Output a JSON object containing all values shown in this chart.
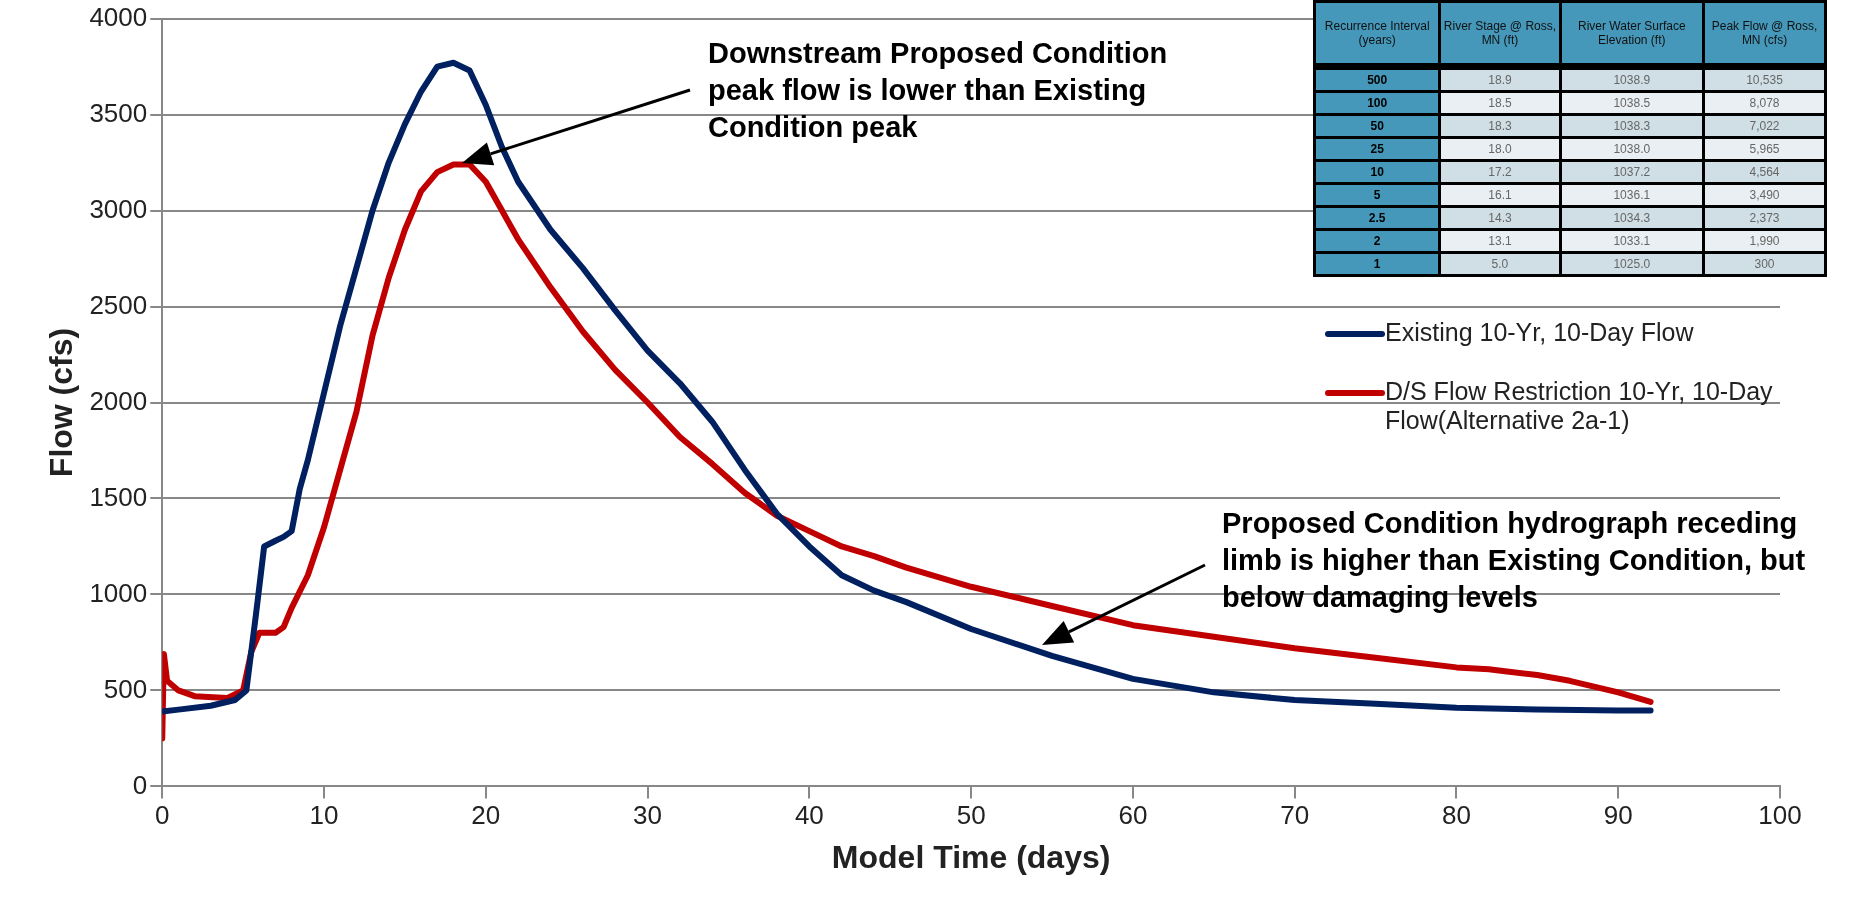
{
  "chart_data": [
    {
      "type": "line",
      "xlabel": "Model Time (days)",
      "ylabel": "Flow (cfs)",
      "xlim": [
        0,
        100
      ],
      "xticks": [
        0,
        10,
        20,
        30,
        40,
        50,
        60,
        70,
        80,
        90,
        100
      ],
      "ylim": [
        0,
        4000
      ],
      "yticks": [
        0,
        500,
        1000,
        1500,
        2000,
        2500,
        3000,
        3500,
        4000
      ],
      "grid": "y",
      "legend": "right",
      "marker": "none",
      "line_style": "solid",
      "annotations": [
        "Downstream Proposed Condition peak flow is lower than Existing Condition peak",
        "Proposed Condition hydrograph receding limb is higher than Existing Condition, but below damaging levels"
      ],
      "series": [
        {
          "name": "Existing 10-Yr, 10-Day Flow",
          "color": "#002060",
          "x": [
            0,
            1,
            3,
            4.5,
            5.2,
            5.8,
            6.3,
            7,
            7.5,
            8,
            8.5,
            9,
            10,
            11,
            12,
            13,
            14,
            15,
            16,
            17,
            18,
            19,
            20,
            21,
            22,
            24,
            26,
            28,
            30,
            32,
            34,
            36,
            38,
            40,
            42,
            44,
            46,
            50,
            55,
            60,
            65,
            70,
            75,
            80,
            85,
            90,
            92
          ],
          "values": [
            390,
            400,
            420,
            450,
            500,
            900,
            1250,
            1280,
            1300,
            1330,
            1550,
            1700,
            2050,
            2400,
            2700,
            3000,
            3250,
            3450,
            3620,
            3750,
            3770,
            3730,
            3550,
            3330,
            3150,
            2900,
            2700,
            2480,
            2270,
            2100,
            1900,
            1650,
            1420,
            1250,
            1100,
            1020,
            960,
            820,
            680,
            560,
            490,
            450,
            430,
            410,
            400,
            395,
            395
          ]
        },
        {
          "name": "D/S Flow Restriction 10-Yr, 10-Day Flow(Alternative 2a-1)",
          "color": "#c00000",
          "x": [
            0,
            0.1,
            0.3,
            1,
            2,
            4,
            5,
            5.5,
            6,
            7,
            7.5,
            8,
            9,
            10,
            11,
            12,
            13,
            14,
            15,
            16,
            17,
            18,
            19,
            20,
            21,
            22,
            24,
            26,
            28,
            30,
            32,
            34,
            36,
            38,
            40,
            42,
            44,
            46,
            50,
            55,
            60,
            65,
            70,
            75,
            80,
            82,
            83,
            85,
            87,
            90,
            92
          ],
          "values": [
            250,
            690,
            550,
            500,
            470,
            460,
            500,
            700,
            800,
            800,
            830,
            930,
            1100,
            1350,
            1650,
            1950,
            2350,
            2650,
            2900,
            3100,
            3200,
            3240,
            3240,
            3150,
            3000,
            2850,
            2600,
            2370,
            2170,
            2000,
            1820,
            1680,
            1530,
            1410,
            1330,
            1250,
            1200,
            1140,
            1040,
            940,
            840,
            780,
            720,
            670,
            620,
            610,
            600,
            580,
            550,
            490,
            440
          ]
        }
      ]
    },
    {
      "type": "other",
      "ylabel": "Recurrence Interval (years)",
      "categories": [
        "River Stage @ Ross, MN (ft)",
        "River Water Surface Elevation (ft)",
        "Peak Flow @ Ross, MN (cfs)"
      ],
      "y_categories": [
        "500",
        "100",
        "50",
        "25",
        "10",
        "5",
        "2.5",
        "2",
        "1"
      ],
      "cell_labels": [
        [
          "18.9",
          "1038.9",
          "10,535"
        ],
        [
          "18.5",
          "1038.5",
          "8,078"
        ],
        [
          "18.3",
          "1038.3",
          "7,022"
        ],
        [
          "18.0",
          "1038.0",
          "5,965"
        ],
        [
          "17.2",
          "1037.2",
          "4,564"
        ],
        [
          "16.1",
          "1036.1",
          "3,490"
        ],
        [
          "14.3",
          "1034.3",
          "2,373"
        ],
        [
          "13.1",
          "1033.1",
          "1,990"
        ],
        [
          "5.0",
          "1025.0",
          "300"
        ]
      ]
    }
  ]
}
